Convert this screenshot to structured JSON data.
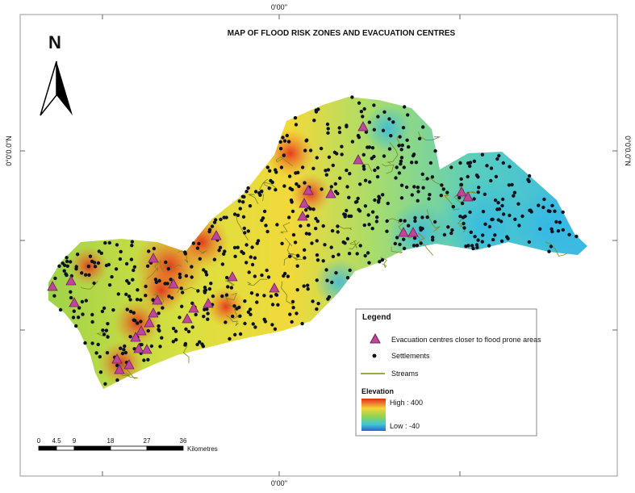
{
  "header": {
    "title": "MAP OF FLOOD RISK ZONES AND EVACUATION CENTRES"
  },
  "north_arrow": {
    "label": "N"
  },
  "graticule": {
    "top": "0'00''",
    "bottom": "0'00''",
    "left": "0°0'0.0\"N",
    "right": "0°0'0.0\"N"
  },
  "legend": {
    "title": "Legend",
    "items": [
      "Evacuation centres closer to flood prone areas",
      "Settlements",
      "Streams"
    ],
    "elevation": {
      "title": "Elevation",
      "high": "High : 400",
      "low": "Low : -40"
    }
  },
  "scale_bar": {
    "ticks": [
      "0",
      "4.5",
      "9",
      "18",
      "27",
      "36"
    ],
    "unit": "Kilometres"
  }
}
